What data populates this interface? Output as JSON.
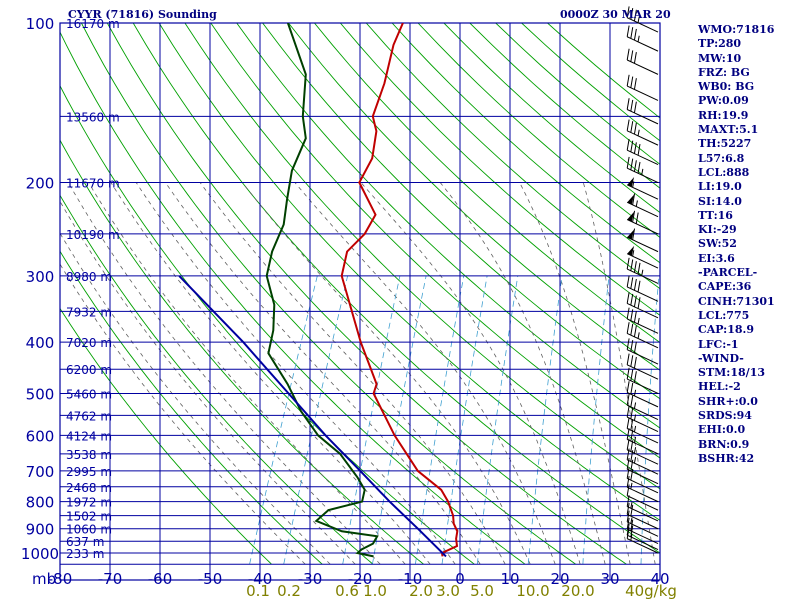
{
  "header": {
    "title": "CYYR (71816) Sounding",
    "date": "0000Z 30 MAR 20"
  },
  "colors": {
    "axis": "#0000a0",
    "grid": "#0000a0",
    "dry_adiabat": "#00a000",
    "moist_adiabat": "#606060",
    "mixing_ratio": "#40a0d0",
    "temperature": "#c00000",
    "dewpoint": "#004000",
    "parcel": "#0000a0",
    "index_text": "#000080",
    "mixing_label": "#808000"
  },
  "indices": [
    "WMO:71816",
    "TP:280",
    "MW:10",
    "FRZ: BG",
    "WB0: BG",
    "PW:0.09",
    "RH:19.9",
    "MAXT:5.1",
    "TH:5227",
    "L57:6.8",
    "LCL:888",
    "LI:19.0",
    "SI:14.0",
    "TT:16",
    "KI:-29",
    "SW:52",
    "EI:3.6",
    "-PARCEL-",
    "CAPE:36",
    "CINH:71301",
    "LCL:775",
    "CAP:18.9",
    "LFC:-1",
    "-WIND-",
    "STM:18/13",
    "HEL:-2",
    "SHR+:0.0",
    "SRDS:94",
    "EHI:0.0",
    "BRN:0.9",
    "BSHR:42"
  ],
  "chart_data": {
    "type": "line",
    "subtype": "skew-t log-p",
    "xlabel": "mb",
    "xlim": [
      -80,
      40
    ],
    "ylim": [
      1050,
      100
    ],
    "y_scale": "log",
    "grid": true,
    "pressure_ticks": [
      "100",
      "200",
      "300",
      "400",
      "500",
      "600",
      "700",
      "800",
      "900",
      "1000"
    ],
    "temperature_ticks": [
      "-80",
      "-70",
      "-60",
      "-50",
      "-40",
      "-30",
      "-20",
      "-10",
      "0",
      "10",
      "20",
      "30",
      "40"
    ],
    "mixing_ratio_labels": [
      "0.1",
      "0.2",
      "0.6",
      "1.0",
      "2.0",
      "3.0",
      "5.0",
      "10.0",
      "20.0",
      "40g/kg"
    ],
    "height_labels": [
      {
        "p": 100,
        "label": "16170 m"
      },
      {
        "p": 150,
        "label": "13560 m"
      },
      {
        "p": 200,
        "label": "11670 m"
      },
      {
        "p": 250,
        "label": "10190 m"
      },
      {
        "p": 300,
        "label": "8980 m"
      },
      {
        "p": 350,
        "label": "7932 m"
      },
      {
        "p": 400,
        "label": "7020 m"
      },
      {
        "p": 450,
        "label": "6200 m"
      },
      {
        "p": 500,
        "label": "5460 m"
      },
      {
        "p": 550,
        "label": "4762 m"
      },
      {
        "p": 600,
        "label": "4124 m"
      },
      {
        "p": 650,
        "label": "3538 m"
      },
      {
        "p": 700,
        "label": "2995 m"
      },
      {
        "p": 750,
        "label": "2468 m"
      },
      {
        "p": 800,
        "label": "1972 m"
      },
      {
        "p": 850,
        "label": "1502 m"
      },
      {
        "p": 900,
        "label": "1060 m"
      },
      {
        "p": 950,
        "label": "637 m"
      },
      {
        "p": 1000,
        "label": "233 m"
      }
    ],
    "series": [
      {
        "key": "temperature",
        "points": [
          [
            1015,
            -3.2
          ],
          [
            1000,
            -3.6
          ],
          [
            970,
            -1.2
          ],
          [
            940,
            -2.0
          ],
          [
            910,
            -2.4
          ],
          [
            880,
            -3.8
          ],
          [
            850,
            -4.6
          ],
          [
            800,
            -6.8
          ],
          [
            760,
            -9.2
          ],
          [
            700,
            -15.5
          ],
          [
            600,
            -23.2
          ],
          [
            500,
            -31.0
          ],
          [
            480,
            -31.2
          ],
          [
            400,
            -38.0
          ],
          [
            300,
            -47.5
          ],
          [
            270,
            -48.5
          ],
          [
            250,
            -46.5
          ],
          [
            230,
            -46.0
          ],
          [
            200,
            -52.0
          ],
          [
            180,
            -51.5
          ],
          [
            160,
            -53.0
          ],
          [
            150,
            -55.0
          ],
          [
            130,
            -55.5
          ],
          [
            110,
            -57.0
          ],
          [
            100,
            -57.0
          ]
        ]
      },
      {
        "key": "dewpoint",
        "points": [
          [
            1015,
            -17.0
          ],
          [
            1000,
            -20.5
          ],
          [
            985,
            -20.0
          ],
          [
            960,
            -18.2
          ],
          [
            930,
            -18.0
          ],
          [
            910,
            -25.5
          ],
          [
            870,
            -31.5
          ],
          [
            830,
            -30.0
          ],
          [
            800,
            -24.0
          ],
          [
            760,
            -24.5
          ],
          [
            720,
            -27.0
          ],
          [
            650,
            -32.5
          ],
          [
            600,
            -38.5
          ],
          [
            540,
            -44.0
          ],
          [
            480,
            -49.0
          ],
          [
            420,
            -55.5
          ],
          [
            380,
            -56.5
          ],
          [
            340,
            -58.5
          ],
          [
            300,
            -62.5
          ],
          [
            270,
            -63.5
          ],
          [
            240,
            -63.5
          ],
          [
            215,
            -65.0
          ],
          [
            190,
            -66.5
          ],
          [
            165,
            -66.5
          ],
          [
            150,
            -69.0
          ],
          [
            125,
            -72.0
          ],
          [
            100,
            -80.0
          ]
        ]
      },
      {
        "key": "parcel",
        "points": [
          [
            1015,
            -2.5
          ],
          [
            900,
            -10.5
          ],
          [
            800,
            -18.5
          ],
          [
            700,
            -27.0
          ],
          [
            600,
            -37.0
          ],
          [
            500,
            -48.0
          ],
          [
            400,
            -61.5
          ],
          [
            300,
            -80.0
          ]
        ]
      }
    ],
    "wind_barbs": [
      {
        "p": 1000,
        "spd": 15
      },
      {
        "p": 985,
        "spd": 20
      },
      {
        "p": 960,
        "spd": 20
      },
      {
        "p": 930,
        "spd": 15
      },
      {
        "p": 900,
        "spd": 20
      },
      {
        "p": 870,
        "spd": 15
      },
      {
        "p": 830,
        "spd": 10
      },
      {
        "p": 800,
        "spd": 15
      },
      {
        "p": 770,
        "spd": 20
      },
      {
        "p": 740,
        "spd": 20
      },
      {
        "p": 710,
        "spd": 25
      },
      {
        "p": 680,
        "spd": 25
      },
      {
        "p": 650,
        "spd": 25
      },
      {
        "p": 620,
        "spd": 25
      },
      {
        "p": 590,
        "spd": 25
      },
      {
        "p": 560,
        "spd": 25
      },
      {
        "p": 530,
        "spd": 25
      },
      {
        "p": 500,
        "spd": 30
      },
      {
        "p": 470,
        "spd": 30
      },
      {
        "p": 440,
        "spd": 30
      },
      {
        "p": 410,
        "spd": 35
      },
      {
        "p": 385,
        "spd": 35
      },
      {
        "p": 360,
        "spd": 40
      },
      {
        "p": 335,
        "spd": 40
      },
      {
        "p": 310,
        "spd": 45
      },
      {
        "p": 290,
        "spd": 55
      },
      {
        "p": 270,
        "spd": 60
      },
      {
        "p": 250,
        "spd": 70
      },
      {
        "p": 232,
        "spd": 65
      },
      {
        "p": 215,
        "spd": 55
      },
      {
        "p": 200,
        "spd": 45
      },
      {
        "p": 185,
        "spd": 40
      },
      {
        "p": 170,
        "spd": 35
      },
      {
        "p": 155,
        "spd": 30
      },
      {
        "p": 140,
        "spd": 30
      },
      {
        "p": 125,
        "spd": 30
      },
      {
        "p": 113,
        "spd": 35
      },
      {
        "p": 104,
        "spd": 35
      }
    ]
  }
}
